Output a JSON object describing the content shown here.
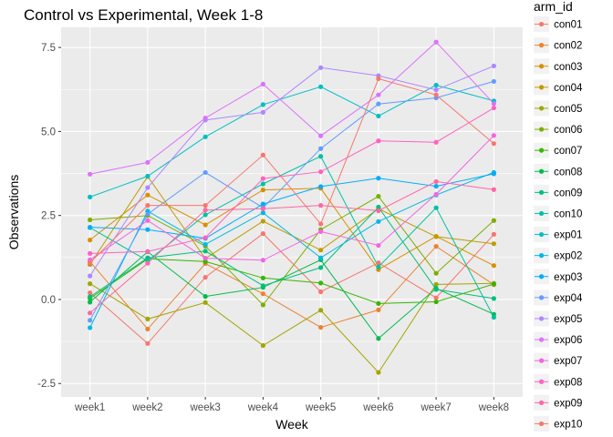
{
  "chart_data": {
    "type": "line",
    "title": "Control vs Experimental, Week 1-8",
    "xlabel": "Week",
    "ylabel": "Observations",
    "categories": [
      "week1",
      "week2",
      "week3",
      "week4",
      "week5",
      "week6",
      "week7",
      "week8"
    ],
    "ylim": [
      -2.9,
      8.1
    ],
    "yticks": [
      -2.5,
      0.0,
      2.5,
      5.0,
      7.5
    ],
    "ytick_labels": [
      "-2.5",
      "0.0",
      "2.5",
      "5.0",
      "7.5"
    ],
    "grid": true,
    "legend": {
      "title": "arm_id",
      "position": "right"
    },
    "series": [
      {
        "name": "con01",
        "color": "#F8766D",
        "values": [
          0.2,
          -1.31,
          0.66,
          1.96,
          0.23,
          1.09,
          0.05,
          1.94
        ]
      },
      {
        "name": "con02",
        "color": "#EA8331",
        "values": [
          1.13,
          -0.88,
          1.07,
          0.17,
          -0.83,
          -0.31,
          1.58,
          0.44
        ]
      },
      {
        "name": "con03",
        "color": "#D89000",
        "values": [
          1.77,
          3.11,
          2.22,
          3.26,
          3.31,
          0.89,
          1.88,
          1.01
        ]
      },
      {
        "name": "con04",
        "color": "#C09B00",
        "values": [
          1.04,
          3.66,
          1.22,
          2.33,
          1.47,
          2.7,
          1.87,
          1.66
        ]
      },
      {
        "name": "con05",
        "color": "#A3A500",
        "values": [
          0.47,
          -0.58,
          -0.09,
          -1.37,
          -0.32,
          -2.17,
          0.45,
          0.48
        ]
      },
      {
        "name": "con06",
        "color": "#7CAE00",
        "values": [
          2.37,
          2.5,
          1.59,
          -0.16,
          2.08,
          3.07,
          0.78,
          2.35
        ]
      },
      {
        "name": "con07",
        "color": "#39B600",
        "values": [
          0.03,
          1.21,
          1.13,
          0.64,
          0.49,
          -0.12,
          -0.07,
          0.46
        ]
      },
      {
        "name": "con08",
        "color": "#00BB4E",
        "values": [
          -0.08,
          1.42,
          0.09,
          0.36,
          1.18,
          -1.16,
          0.33,
          -0.44
        ]
      },
      {
        "name": "con09",
        "color": "#00BF7D",
        "values": [
          0.08,
          1.24,
          1.44,
          0.41,
          0.95,
          2.75,
          0.3,
          0.03
        ]
      },
      {
        "name": "con10",
        "color": "#00C1A3",
        "values": [
          2.14,
          1.15,
          2.52,
          3.44,
          4.26,
          0.97,
          2.73,
          -0.53
        ]
      },
      {
        "name": "exp01",
        "color": "#00BFC4",
        "values": [
          3.05,
          3.67,
          4.84,
          5.8,
          6.33,
          5.46,
          6.38,
          5.91
        ]
      },
      {
        "name": "exp02",
        "color": "#00B9E3",
        "values": [
          -0.84,
          2.63,
          1.64,
          2.58,
          1.24,
          2.32,
          3.11,
          3.78
        ]
      },
      {
        "name": "exp03",
        "color": "#00ADFA",
        "values": [
          2.15,
          2.08,
          1.82,
          2.84,
          3.36,
          3.61,
          3.37,
          3.74
        ]
      },
      {
        "name": "exp04",
        "color": "#619CFF",
        "values": [
          -0.62,
          2.54,
          3.78,
          2.73,
          4.49,
          5.82,
          6.0,
          6.49
        ]
      },
      {
        "name": "exp05",
        "color": "#AE87FF",
        "values": [
          0.7,
          3.33,
          5.34,
          5.57,
          6.9,
          6.66,
          6.24,
          6.95
        ]
      },
      {
        "name": "exp06",
        "color": "#DB72FB",
        "values": [
          3.73,
          4.08,
          5.4,
          6.41,
          4.87,
          6.09,
          7.66,
          5.83
        ]
      },
      {
        "name": "exp07",
        "color": "#F564E3",
        "values": [
          1.18,
          2.35,
          1.23,
          1.17,
          2.02,
          1.61,
          3.13,
          4.88
        ]
      },
      {
        "name": "exp08",
        "color": "#FF61C3",
        "values": [
          1.37,
          1.43,
          1.84,
          3.6,
          3.8,
          4.72,
          4.68,
          5.7
        ]
      },
      {
        "name": "exp09",
        "color": "#FF67A4",
        "values": [
          -0.4,
          1.08,
          2.66,
          2.7,
          2.8,
          2.64,
          3.51,
          3.27
        ]
      },
      {
        "name": "exp10",
        "color": "#F8766D",
        "values": [
          1.09,
          2.8,
          2.8,
          4.3,
          2.25,
          6.57,
          6.09,
          4.64
        ]
      }
    ]
  }
}
